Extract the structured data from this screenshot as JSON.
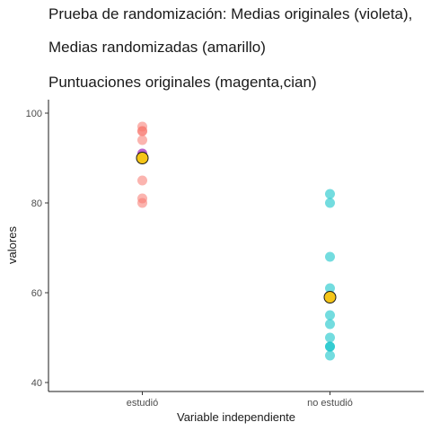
{
  "chart_data": {
    "type": "scatter",
    "title_lines": [
      "Prueba de randomización: Medias originales (violeta),",
      "Medias randomizadas (amarillo)",
      "Puntuaciones originales (magenta,cian)"
    ],
    "xlabel": "Variable independiente",
    "ylabel": "valores",
    "categories": [
      "estudió",
      "no estudió"
    ],
    "ylim": [
      38,
      103
    ],
    "yticks": [
      40,
      60,
      80,
      100
    ],
    "grid": false,
    "series": [
      {
        "category": "estudió",
        "color": "#f8766d",
        "values": [
          97,
          96,
          96,
          94,
          91,
          85,
          81,
          80
        ]
      },
      {
        "category": "no estudió",
        "color": "#00bfc4",
        "values": [
          82,
          80,
          68,
          61,
          59,
          55,
          53,
          50,
          48,
          48,
          46
        ]
      }
    ],
    "original_means": {
      "color": "#8b2be2",
      "values": [
        91,
        59
      ]
    },
    "randomized_means": {
      "color": "#f5c518",
      "values": [
        90,
        59
      ]
    }
  }
}
